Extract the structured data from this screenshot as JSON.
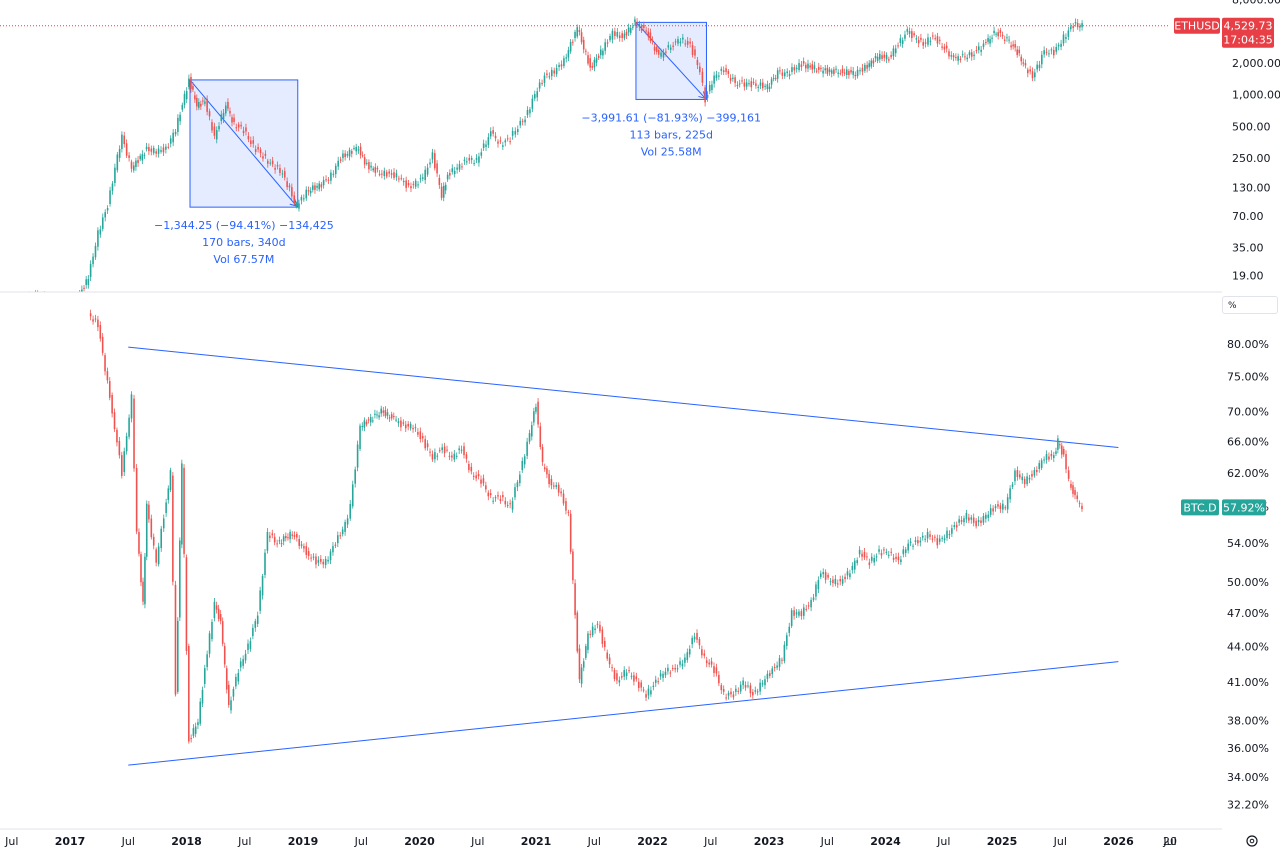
{
  "chart_data": [
    {
      "type": "line",
      "symbol": "ETHUSD",
      "scale": "log",
      "last_price": "4,529.73",
      "countdown": "17:04:35",
      "tag_color": "#e83e45",
      "y_ticks": [
        "8,000.00",
        "2,000.00",
        "1,000.00",
        "500.00",
        "250.00",
        "130.00",
        "70.00",
        "35.00",
        "19.00"
      ],
      "series": [
        {
          "x": [
            "2016-06-15",
            "2016-10-01",
            "2017-01-01",
            "2017-03-01",
            "2017-04-01",
            "2017-05-01",
            "2017-06-01",
            "2017-06-15",
            "2017-07-15",
            "2017-09-01",
            "2017-10-01",
            "2017-11-01",
            "2017-12-01",
            "2018-01-12",
            "2018-02-06",
            "2018-03-01",
            "2018-04-01",
            "2018-05-06",
            "2018-06-01",
            "2018-07-01",
            "2018-08-01",
            "2018-09-01",
            "2018-10-01",
            "2018-11-01",
            "2018-12-15",
            "2019-01-15",
            "2019-03-01",
            "2019-04-01",
            "2019-05-01",
            "2019-06-26",
            "2019-07-15",
            "2019-09-01",
            "2019-10-01",
            "2019-11-01",
            "2019-12-01",
            "2020-01-15",
            "2020-02-15",
            "2020-03-13",
            "2020-04-01",
            "2020-05-01",
            "2020-06-01",
            "2020-07-01",
            "2020-08-15",
            "2020-09-15",
            "2020-10-15",
            "2020-11-01",
            "2020-12-01",
            "2021-01-01",
            "2021-02-01",
            "2021-03-01",
            "2021-04-01",
            "2021-05-12",
            "2021-06-22",
            "2021-08-01",
            "2021-09-01",
            "2021-10-01",
            "2021-11-10",
            "2021-12-15",
            "2022-01-24",
            "2022-03-01",
            "2022-04-01",
            "2022-05-01",
            "2022-06-01",
            "2022-06-18",
            "2022-07-15",
            "2022-08-15",
            "2022-09-20",
            "2022-11-10",
            "2022-12-30",
            "2023-02-01",
            "2023-03-01",
            "2023-04-15",
            "2023-06-15",
            "2023-08-15",
            "2023-10-01",
            "2023-11-01",
            "2023-12-10",
            "2024-01-15",
            "2024-03-12",
            "2024-05-01",
            "2024-06-01",
            "2024-08-05",
            "2024-10-01",
            "2024-11-15",
            "2024-12-16",
            "2025-01-20",
            "2025-02-15",
            "2025-03-10",
            "2025-04-09",
            "2025-05-15",
            "2025-06-15",
            "2025-07-15",
            "2025-08-15",
            "2025-09-12"
          ],
          "y": [
            11,
            12,
            8,
            18,
            48,
            88,
            260,
            390,
            200,
            300,
            290,
            300,
            470,
            1380,
            800,
            850,
            400,
            800,
            520,
            460,
            320,
            260,
            210,
            180,
            85,
            120,
            140,
            170,
            250,
            320,
            220,
            180,
            175,
            165,
            130,
            160,
            265,
            110,
            170,
            205,
            235,
            240,
            430,
            340,
            380,
            470,
            600,
            1000,
            1500,
            1650,
            2100,
            4300,
            1800,
            2700,
            3900,
            3500,
            4870,
            4000,
            2300,
            2900,
            3400,
            2900,
            1700,
            900,
            1500,
            1700,
            1300,
            1250,
            1200,
            1600,
            1600,
            1950,
            1700,
            1650,
            1600,
            1800,
            2300,
            2250,
            4000,
            3000,
            3600,
            2200,
            2400,
            3100,
            4000,
            3300,
            2700,
            2000,
            1450,
            2600,
            2500,
            3500,
            4600,
            4530
          ]
        }
      ],
      "measurements": [
        {
          "change": "−1,344.25 (−94.41%) −134,425",
          "bars": "170 bars, 340d",
          "volume": "Vol 67.57M",
          "from": "2018-01-12",
          "to": "2018-12-15"
        },
        {
          "change": "−3,991.61 (−81.93%) −399,161",
          "bars": "113 bars, 225d",
          "volume": "Vol 25.58M",
          "from": "2021-11-10",
          "to": "2022-06-18"
        }
      ]
    },
    {
      "type": "line",
      "symbol": "BTC.D",
      "scale": "log",
      "last_value": "57.92%",
      "tag_color": "#26a69a",
      "scale_label": "%",
      "y_ticks": [
        "80.00%",
        "75.00%",
        "70.00%",
        "66.00%",
        "62.00%",
        "58.00%",
        "54.00%",
        "50.00%",
        "47.00%",
        "44.00%",
        "41.00%",
        "38.00%",
        "36.00%",
        "34.00%",
        "32.20%"
      ],
      "series": [
        {
          "x": [
            "2017-03-01",
            "2017-04-01",
            "2017-05-15",
            "2017-06-15",
            "2017-07-15",
            "2017-08-01",
            "2017-08-20",
            "2017-09-01",
            "2017-10-01",
            "2017-10-25",
            "2017-11-15",
            "2017-12-01",
            "2017-12-20",
            "2018-01-12",
            "2018-02-10",
            "2018-03-01",
            "2018-04-01",
            "2018-04-20",
            "2018-05-15",
            "2018-06-15",
            "2018-07-15",
            "2018-08-15",
            "2018-09-15",
            "2018-10-15",
            "2018-12-01",
            "2019-01-15",
            "2019-02-15",
            "2019-03-15",
            "2019-04-15",
            "2019-05-15",
            "2019-06-01",
            "2019-07-01",
            "2019-09-06",
            "2019-10-15",
            "2019-11-15",
            "2019-12-15",
            "2020-01-15",
            "2020-02-15",
            "2020-03-15",
            "2020-04-15",
            "2020-05-15",
            "2020-06-15",
            "2020-07-15",
            "2020-08-15",
            "2020-09-15",
            "2020-10-15",
            "2020-11-15",
            "2020-12-15",
            "2021-01-04",
            "2021-01-25",
            "2021-02-15",
            "2021-03-15",
            "2021-04-15",
            "2021-05-19",
            "2021-06-15",
            "2021-07-15",
            "2021-08-15",
            "2021-09-15",
            "2021-10-15",
            "2021-11-15",
            "2021-12-15",
            "2022-01-15",
            "2022-02-15",
            "2022-03-15",
            "2022-04-15",
            "2022-05-15",
            "2022-06-15",
            "2022-07-15",
            "2022-08-15",
            "2022-09-15",
            "2022-10-15",
            "2022-11-15",
            "2022-12-15",
            "2023-01-15",
            "2023-02-15",
            "2023-03-15",
            "2023-04-15",
            "2023-05-15",
            "2023-06-15",
            "2023-07-15",
            "2023-08-15",
            "2023-09-15",
            "2023-10-15",
            "2023-11-15",
            "2023-12-15",
            "2024-01-15",
            "2024-02-15",
            "2024-03-15",
            "2024-04-15",
            "2024-05-15",
            "2024-06-15",
            "2024-07-15",
            "2024-08-15",
            "2024-09-15",
            "2024-10-15",
            "2024-11-15",
            "2024-12-15",
            "2025-01-15",
            "2025-02-15",
            "2025-03-15",
            "2025-04-15",
            "2025-05-15",
            "2025-06-15",
            "2025-06-27",
            "2025-07-15",
            "2025-08-01",
            "2025-08-20",
            "2025-09-12"
          ],
          "y": [
            85,
            83,
            70,
            62,
            72,
            55,
            48,
            58,
            52,
            57,
            62,
            40,
            63,
            36.5,
            38,
            42,
            48,
            46,
            39,
            42,
            44,
            47,
            55,
            54,
            55,
            53,
            52,
            52,
            54,
            56,
            58,
            68,
            70,
            69,
            68,
            68,
            66,
            64,
            65,
            64,
            65,
            62,
            61,
            59,
            59,
            58,
            62,
            67,
            71,
            63,
            61,
            60,
            57,
            41,
            45,
            46,
            43,
            41,
            42,
            41,
            40,
            41,
            42,
            42,
            43,
            45,
            43,
            42,
            40,
            40,
            41,
            40,
            41,
            42,
            43,
            47,
            47,
            48,
            51,
            50,
            50,
            51,
            53,
            52,
            53,
            53,
            52,
            54,
            54,
            55,
            54,
            55,
            56,
            57,
            56,
            57,
            58,
            58,
            62,
            61,
            62,
            64,
            64,
            66,
            64,
            61,
            59,
            58
          ]
        }
      ],
      "trendlines": [
        {
          "from": [
            "2017-07-01",
            79.5
          ],
          "to": [
            "2025-12-31",
            65.2
          ]
        },
        {
          "from": [
            "2017-07-01",
            34.8
          ],
          "to": [
            "2025-12-31",
            42.7
          ]
        }
      ]
    }
  ],
  "time_axis": {
    "labels": [
      "Jul",
      "2017",
      "Jul",
      "2018",
      "Jul",
      "2019",
      "Jul",
      "2020",
      "Jul",
      "2021",
      "Jul",
      "2022",
      "Jul",
      "2023",
      "Jul",
      "2024",
      "Jul",
      "2025",
      "Jul",
      "2026",
      "Jul",
      "20"
    ],
    "year_labels": [
      "2017",
      "2018",
      "2019",
      "2020",
      "2021",
      "2022",
      "2023",
      "2024",
      "2025",
      "2026"
    ]
  },
  "settings_icon": "gear-icon"
}
